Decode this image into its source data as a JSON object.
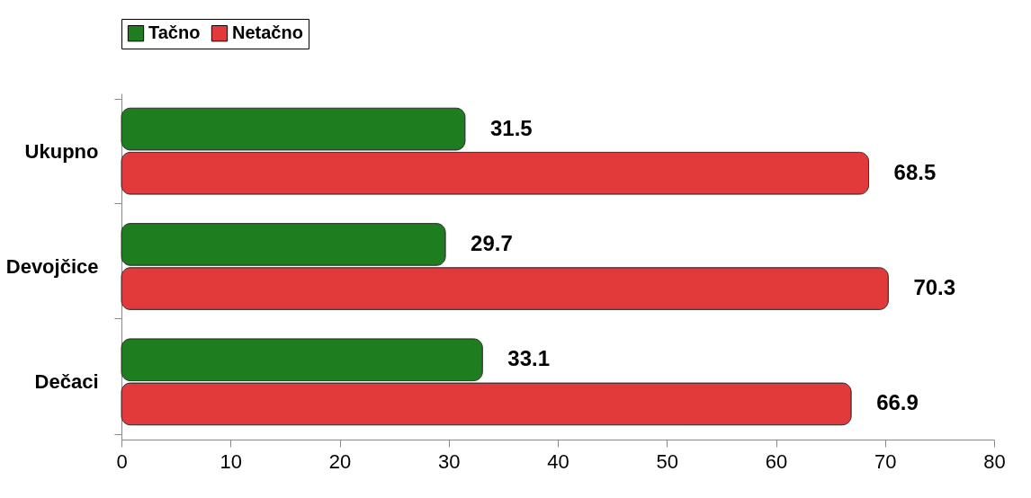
{
  "chart_data": {
    "type": "bar",
    "orientation": "horizontal",
    "categories": [
      "Ukupno",
      "Devojčice",
      "Dečaci"
    ],
    "series": [
      {
        "name": "Tačno",
        "color": "#1e7d1e",
        "values": [
          31.5,
          29.7,
          33.1
        ]
      },
      {
        "name": "Netačno",
        "color": "#e23a3a",
        "values": [
          68.5,
          70.3,
          66.9
        ]
      }
    ],
    "xlim": [
      0,
      80
    ],
    "xticks": [
      0,
      10,
      20,
      30,
      40,
      50,
      60,
      70,
      80
    ],
    "data_labels": true,
    "legend": "top",
    "grid": false
  }
}
